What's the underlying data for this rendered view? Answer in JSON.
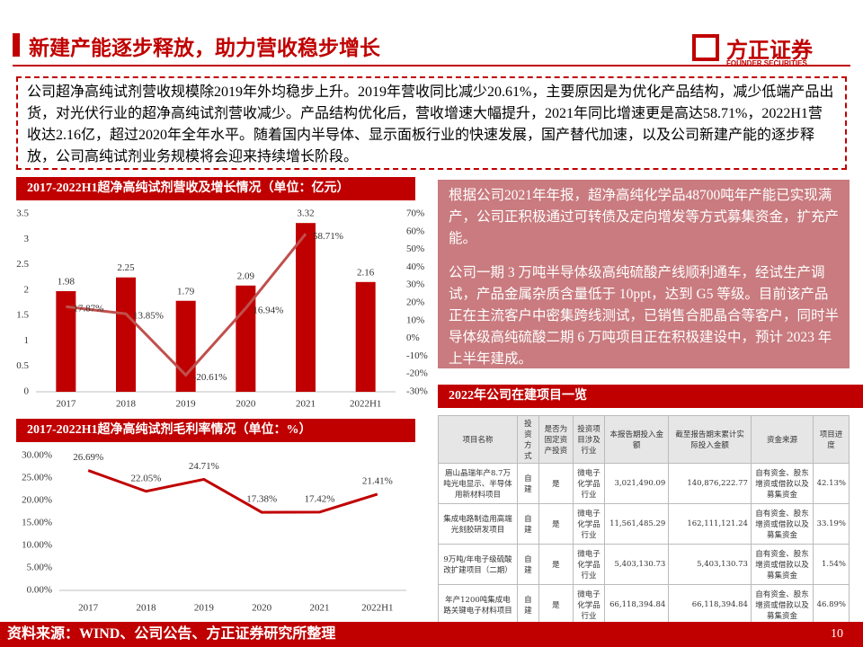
{
  "header": {
    "title": "新建产能逐步释放，助力营收稳步增长",
    "logo_name": "方正证券",
    "logo_subname": "FOUNDER SECURITIES"
  },
  "summary": "公司超净高纯试剂营收规模除2019年外均稳步上升。2019年营收同比减少20.61%，主要原因是为优化产品结构，减少低端产品出货，对光伏行业的超净高纯试剂营收减少。产品结构优化后，营收增速大幅提升，2021年同比增速更是高达58.71%，2022H1营收达2.16亿，超过2020年全年水平。随着国内半导体、显示面板行业的快速发展，国产替代加速，以及公司新建产能的逐步释放，公司高纯试剂业务规模将会迎来持续增长阶段。",
  "chart_data": [
    {
      "type": "bar",
      "title": "2017-2022H1超净高纯试剂营收及增长情况（单位：亿元）",
      "categories": [
        "2017",
        "2018",
        "2019",
        "2020",
        "2021",
        "2022H1"
      ],
      "series": [
        {
          "type": "bar",
          "color": "#c00000",
          "values": [
            1.98,
            2.25,
            1.79,
            2.09,
            3.32,
            2.16
          ]
        },
        {
          "type": "line",
          "axis": "y2",
          "color": "#c0504d",
          "values": [
            17.87,
            13.85,
            -20.61,
            16.94,
            58.71,
            null
          ],
          "value_labels": [
            "17.87%",
            "13.85%",
            "-20.61%",
            "16.94%",
            "58.71%",
            null
          ]
        }
      ],
      "ylim": [
        0,
        3.5
      ],
      "yticks": [
        0,
        0.5,
        1,
        1.5,
        2,
        2.5,
        3,
        3.5
      ],
      "y2lim": [
        -30,
        70
      ],
      "y2ticks": [
        {
          "value": -30,
          "label": "-30%"
        },
        {
          "value": -20,
          "label": "-20%"
        },
        {
          "value": -10,
          "label": "-10%"
        },
        {
          "value": 0,
          "label": "0%"
        },
        {
          "value": 10,
          "label": "10%"
        },
        {
          "value": 20,
          "label": "20%"
        },
        {
          "value": 30,
          "label": "30%"
        },
        {
          "value": 40,
          "label": "40%"
        },
        {
          "value": 50,
          "label": "50%"
        },
        {
          "value": 60,
          "label": "60%"
        },
        {
          "value": 70,
          "label": "70%"
        }
      ],
      "grid": false
    },
    {
      "type": "line",
      "title": "2017-2022H1超净高纯试剂毛利率情况（单位：%）",
      "categories": [
        "2017",
        "2018",
        "2019",
        "2020",
        "2021",
        "2022H1"
      ],
      "series": [
        {
          "color": "#c00000",
          "values": [
            26.69,
            22.05,
            24.71,
            17.38,
            17.42,
            21.41
          ],
          "value_labels": [
            "26.69%",
            "22.05%",
            "24.71%",
            "17.38%",
            "17.42%",
            "21.41%"
          ]
        }
      ],
      "ylim": [
        0,
        30
      ],
      "yticks": [
        {
          "value": 0,
          "label": "0.00%"
        },
        {
          "value": 5,
          "label": "5.00%"
        },
        {
          "value": 10,
          "label": "10.00%"
        },
        {
          "value": 15,
          "label": "15.00%"
        },
        {
          "value": 20,
          "label": "20.00%"
        },
        {
          "value": 25,
          "label": "25.00%"
        },
        {
          "value": 30,
          "label": "30.00%"
        }
      ],
      "grid": false
    }
  ],
  "right_panel": {
    "paragraphs": [
      "根据公司2021年年报，超净高纯化学品48700吨年产能已实现满产，公司正积极通过可转债及定向增发等方式募集资金，扩充产能。",
      "公司一期 3 万吨半导体级高纯硫酸产线顺利通车，经试生产调试，产品金属杂质含量低于 10ppt，达到 G5 等级。目前该产品正在主流客户中密集跨线测试，已销售合肥晶合等客户，同时半导体级高纯硫酸二期 6 万吨项目正在积极建设中，预计 2023 年上半年建成。"
    ]
  },
  "table": {
    "title": "2022年公司在建项目一览",
    "header": [
      "项目名称",
      "投资方式",
      "是否为固定资产投资",
      "投资项目涉及行业",
      "本报告期投入金额",
      "截至报告期末累计实际投入金额",
      "资金来源",
      "项目进度"
    ],
    "rows": [
      [
        "眉山晶瑞年产8.7万吨光电显示、半导体用新材料项目",
        "自建",
        "是",
        "微电子化学品行业",
        "3,021,490.09",
        "140,876,222.77",
        "自有资金、股东增资或借款以及募集资金",
        "42.13%"
      ],
      [
        "集成电路制造用高端光刻胶研发项目",
        "自建",
        "是",
        "微电子化学品行业",
        "11,561,485.29",
        "162,111,121.24",
        "自有资金、股东增资或借款以及募集资金",
        "33.19%"
      ],
      [
        "9万吨/年电子级硫酸改扩建项目（二期）",
        "自建",
        "是",
        "微电子化学品行业",
        "5,403,130.73",
        "5,403,130.73",
        "自有资金、股东增资或借款以及募集资金",
        "1.54%"
      ],
      [
        "年产1200吨集成电路关键电子材料项目",
        "自建",
        "是",
        "微电子化学品行业",
        "66,118,394.84",
        "66,118,394.84",
        "自有资金、股东增资或借款以及募集资金",
        "46.89%"
      ]
    ]
  },
  "footer": {
    "source": "资料来源：WIND、公司公告、方正证券研究所整理",
    "page": "10"
  }
}
